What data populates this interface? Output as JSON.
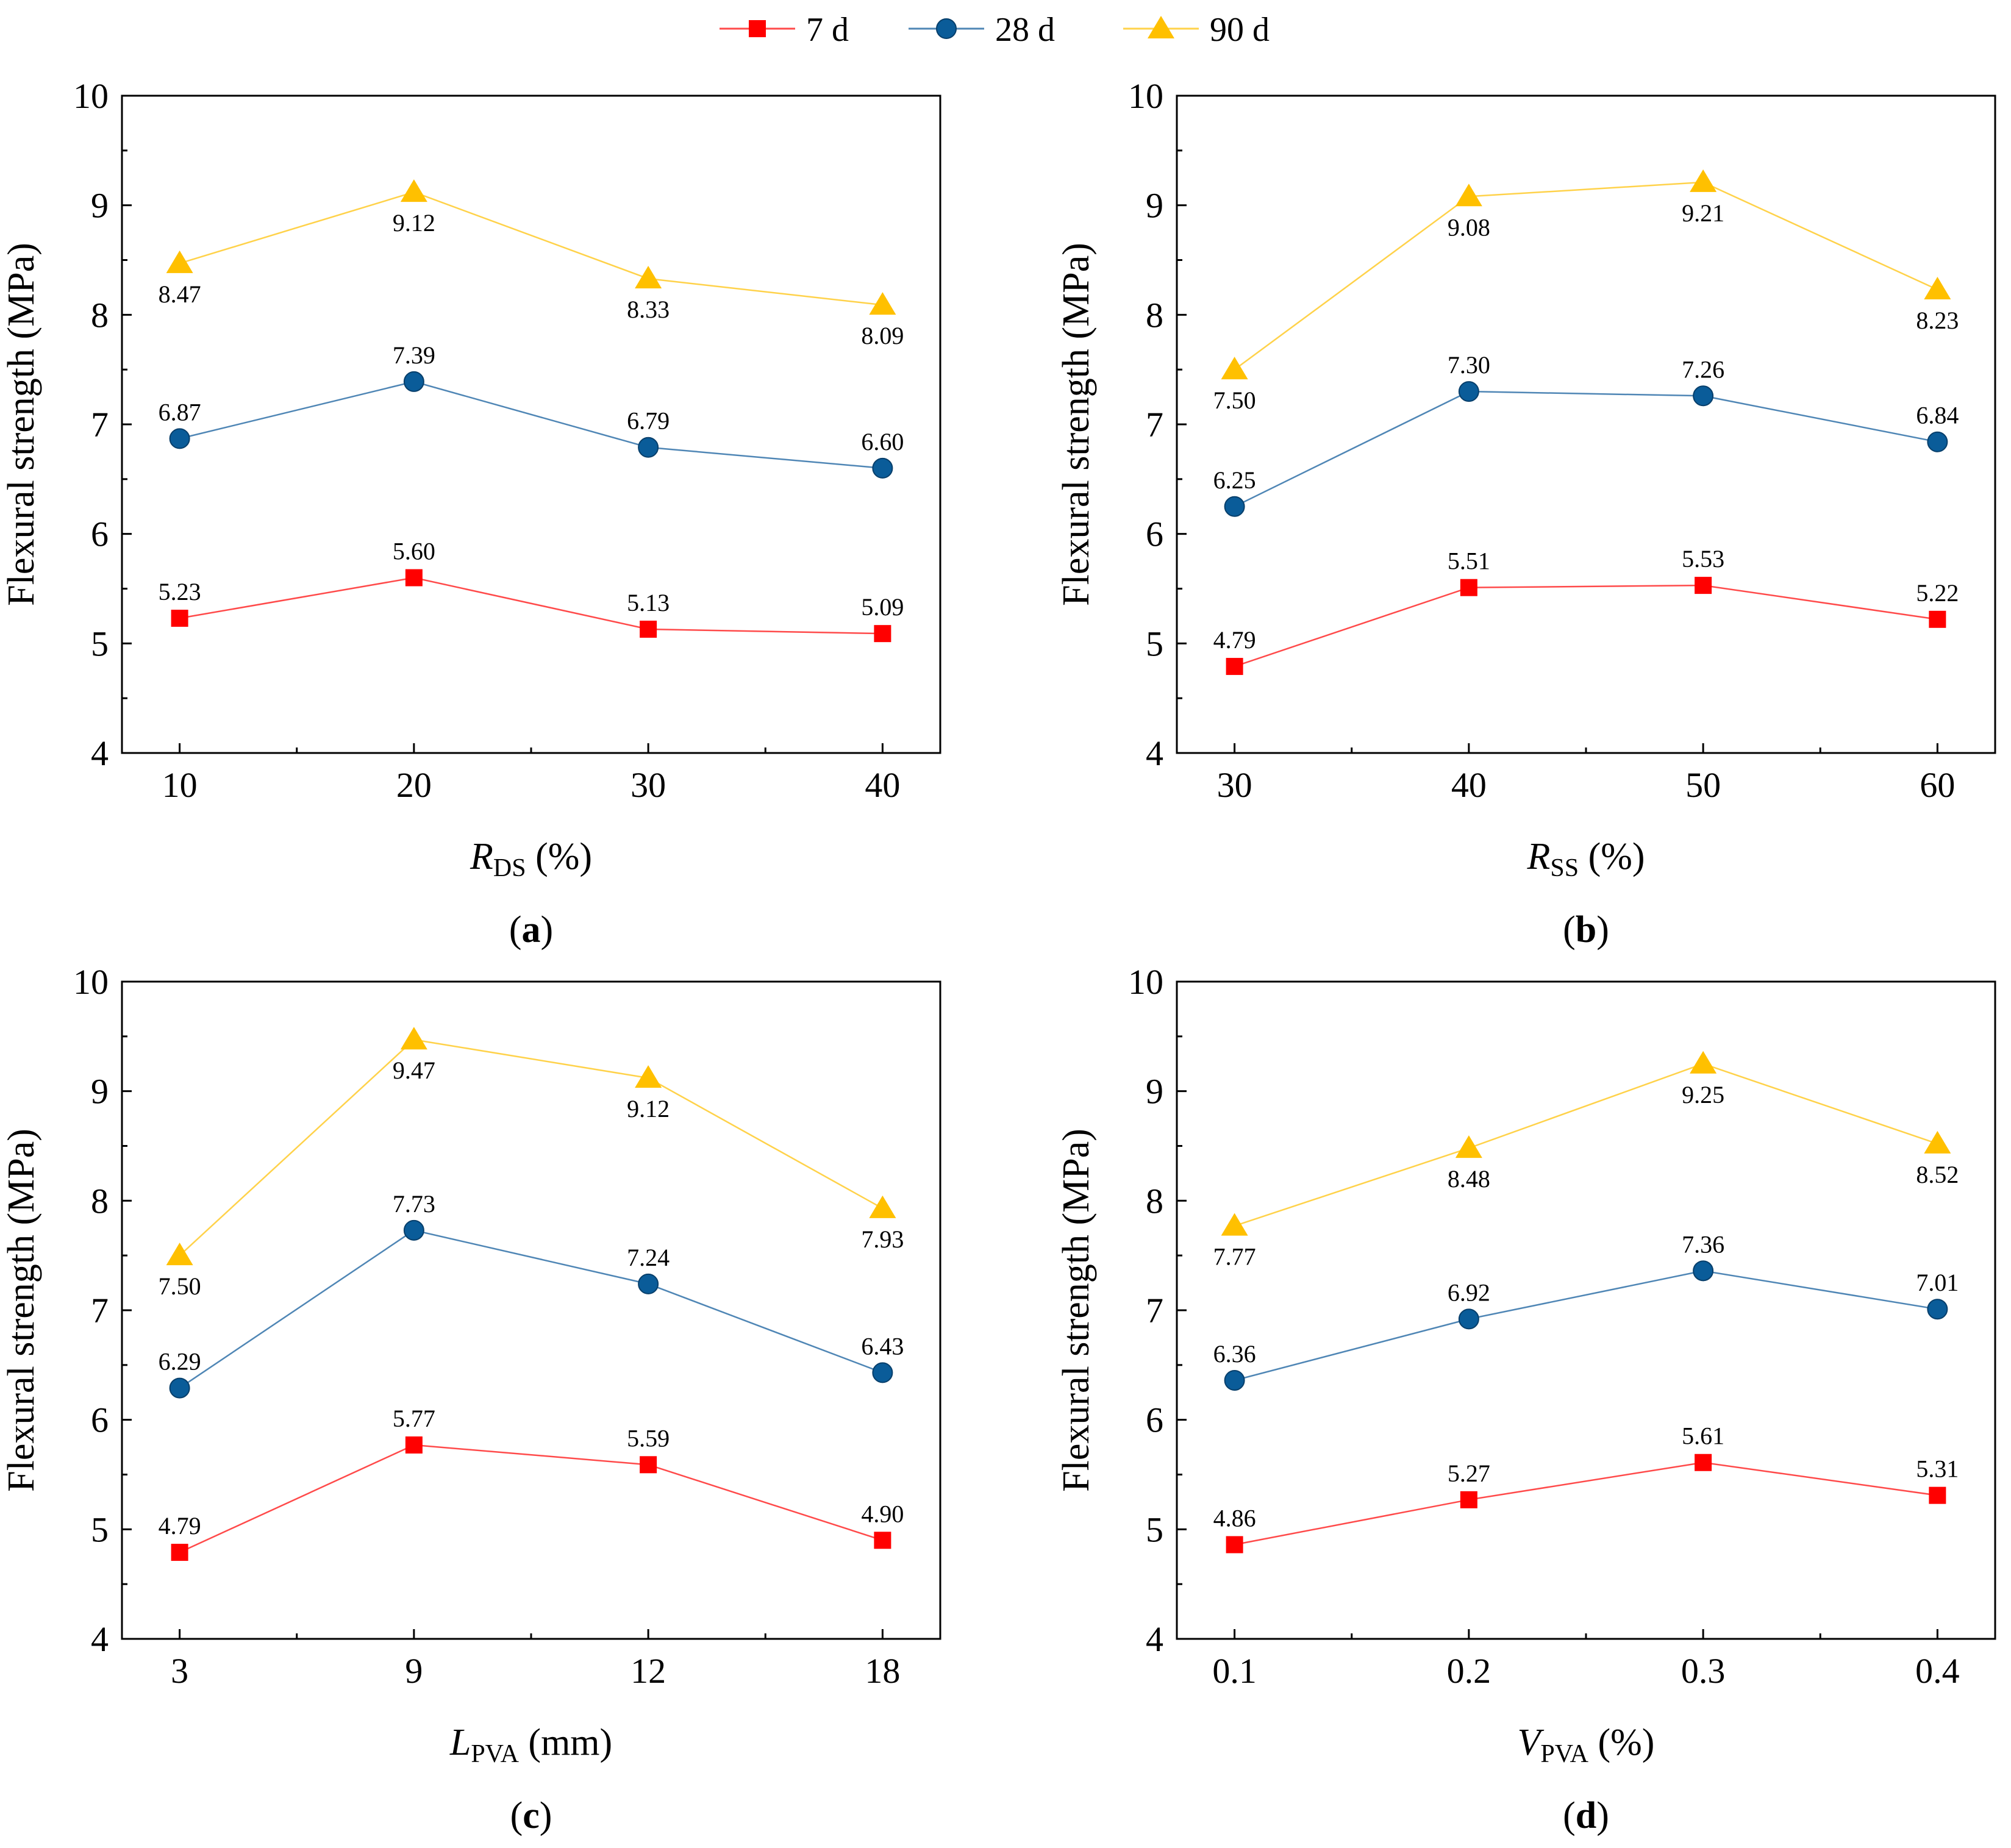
{
  "legend": [
    {
      "name": "7 d",
      "color": "#ff0000",
      "marker": "square"
    },
    {
      "name": "28 d",
      "color": "#0a5c99",
      "marker": "circle"
    },
    {
      "name": "90 d",
      "color": "#ffc000",
      "marker": "triangle"
    }
  ],
  "colors": {
    "series_7d_line": "#ff4a4a",
    "series_28d_line": "#4f86b5",
    "series_90d_line": "#ffd24a"
  },
  "chart_data": [
    {
      "type": "line",
      "panel_label": "(a)",
      "panel_letter": "a",
      "xlabel_main": "R",
      "xlabel_sub": "DS",
      "xlabel_tail": " (%)",
      "ylabel": "Flexural strength (MPa)",
      "categories": [
        "10",
        "20",
        "30",
        "40"
      ],
      "ylim": [
        4,
        10
      ],
      "yticks": [
        "4",
        "5",
        "6",
        "7",
        "8",
        "9",
        "10"
      ],
      "series": [
        {
          "name": "7 d",
          "values": [
            5.23,
            5.6,
            5.13,
            5.09
          ],
          "labels": [
            "5.23",
            "5.60",
            "5.13",
            "5.09"
          ],
          "label_pos": [
            "above",
            "above",
            "above",
            "above"
          ]
        },
        {
          "name": "28 d",
          "values": [
            6.87,
            7.39,
            6.79,
            6.6
          ],
          "labels": [
            "6.87",
            "7.39",
            "6.79",
            "6.60"
          ],
          "label_pos": [
            "above",
            "above",
            "above",
            "above"
          ]
        },
        {
          "name": "90 d",
          "values": [
            8.47,
            9.12,
            8.33,
            8.09
          ],
          "labels": [
            "8.47",
            "9.12",
            "8.33",
            "8.09"
          ],
          "label_pos": [
            "below",
            "below",
            "below",
            "below"
          ]
        }
      ]
    },
    {
      "type": "line",
      "panel_label": "(b)",
      "panel_letter": "b",
      "xlabel_main": "R",
      "xlabel_sub": "SS",
      "xlabel_tail": " (%)",
      "ylabel": "Flexural strength (MPa)",
      "categories": [
        "30",
        "40",
        "50",
        "60"
      ],
      "ylim": [
        4,
        10
      ],
      "yticks": [
        "4",
        "5",
        "6",
        "7",
        "8",
        "9",
        "10"
      ],
      "series": [
        {
          "name": "7 d",
          "values": [
            4.79,
            5.51,
            5.53,
            5.22
          ],
          "labels": [
            "4.79",
            "5.51",
            "5.53",
            "5.22"
          ],
          "label_pos": [
            "above",
            "above",
            "above",
            "above"
          ]
        },
        {
          "name": "28 d",
          "values": [
            6.25,
            7.3,
            7.26,
            6.84
          ],
          "labels": [
            "6.25",
            "7.30",
            "7.26",
            "6.84"
          ],
          "label_pos": [
            "above",
            "above",
            "above",
            "above"
          ]
        },
        {
          "name": "90 d",
          "values": [
            7.5,
            9.08,
            9.21,
            8.23
          ],
          "labels": [
            "7.50",
            "9.08",
            "9.21",
            "8.23"
          ],
          "label_pos": [
            "below",
            "below",
            "below",
            "below"
          ]
        }
      ]
    },
    {
      "type": "line",
      "panel_label": "(c)",
      "panel_letter": "c",
      "xlabel_main": "L",
      "xlabel_sub": "PVA",
      "xlabel_tail": " (mm)",
      "ylabel": "Flexural strength (MPa)",
      "categories": [
        "3",
        "9",
        "12",
        "18"
      ],
      "ylim": [
        4,
        10
      ],
      "yticks": [
        "4",
        "5",
        "6",
        "7",
        "8",
        "9",
        "10"
      ],
      "series": [
        {
          "name": "7 d",
          "values": [
            4.79,
            5.77,
            5.59,
            4.9
          ],
          "labels": [
            "4.79",
            "5.77",
            "5.59",
            "4.90"
          ],
          "label_pos": [
            "above",
            "above",
            "above",
            "above"
          ]
        },
        {
          "name": "28 d",
          "values": [
            6.29,
            7.73,
            7.24,
            6.43
          ],
          "labels": [
            "6.29",
            "7.73",
            "7.24",
            "6.43"
          ],
          "label_pos": [
            "above",
            "above",
            "above",
            "above"
          ]
        },
        {
          "name": "90 d",
          "values": [
            7.5,
            9.47,
            9.12,
            7.93
          ],
          "labels": [
            "7.50",
            "9.47",
            "9.12",
            "7.93"
          ],
          "label_pos": [
            "below",
            "below",
            "below",
            "below"
          ]
        }
      ]
    },
    {
      "type": "line",
      "panel_label": "(d)",
      "panel_letter": "d",
      "xlabel_main": "V",
      "xlabel_sub": "PVA",
      "xlabel_tail": " (%)",
      "ylabel": "Flexural strength (MPa)",
      "categories": [
        "0.1",
        "0.2",
        "0.3",
        "0.4"
      ],
      "ylim": [
        4,
        10
      ],
      "yticks": [
        "4",
        "5",
        "6",
        "7",
        "8",
        "9",
        "10"
      ],
      "series": [
        {
          "name": "7 d",
          "values": [
            4.86,
            5.27,
            5.61,
            5.31
          ],
          "labels": [
            "4.86",
            "5.27",
            "5.61",
            "5.31"
          ],
          "label_pos": [
            "above",
            "above",
            "above",
            "above"
          ]
        },
        {
          "name": "28 d",
          "values": [
            6.36,
            6.92,
            7.36,
            7.01
          ],
          "labels": [
            "6.36",
            "6.92",
            "7.36",
            "7.01"
          ],
          "label_pos": [
            "above",
            "above",
            "above",
            "above"
          ]
        },
        {
          "name": "90 d",
          "values": [
            7.77,
            8.48,
            9.25,
            8.52
          ],
          "labels": [
            "7.77",
            "8.48",
            "9.25",
            "8.52"
          ],
          "label_pos": [
            "below",
            "below",
            "below",
            "below"
          ]
        }
      ]
    }
  ]
}
